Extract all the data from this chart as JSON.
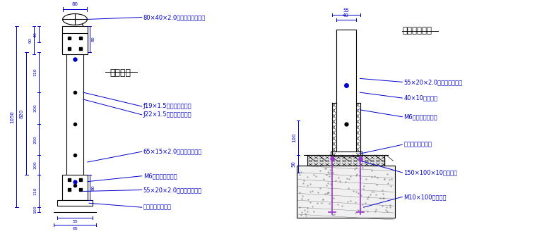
{
  "bg_color": "#ffffff",
  "black": "#000000",
  "blue": "#0000cd",
  "purple": "#9933cc",
  "title1": "侧立面图",
  "title2": "预埋钢板详图",
  "dim_top80": "80",
  "dim_1050": "1050",
  "dim_820": "820",
  "dim_90": "90",
  "dim_40top": "40",
  "dim_110a": "110",
  "dim_80a": "80",
  "dim_200a": "200",
  "dim_200b": "200",
  "dim_200c": "200",
  "dim_110b": "110",
  "dim_80b": "80",
  "dim_100": "100",
  "dim_55b": "55",
  "dim_65": "65",
  "dim_55r": "55",
  "dim_40r": "40",
  "dim_100r": "100",
  "dim_50r": "50",
  "lbl_ellipse": "80×40×2.0拉丝不锈钐椭圆管",
  "lbl_round": "ƒ19×1.5拉丝不锈钐圆管",
  "lbl_sleeve": "ƒ22×1.5拉丝不锈钐套管",
  "lbl_rect": "65×15×2.0拉丝不锈钐方管",
  "lbl_m6": "M6不锈钐沉头螺丝",
  "lbl_55rect": "55×20×2.0拉丝不锈钐方管",
  "lbl_cover": "拉丝不锈钐装饰盖",
  "lbl_r_55rect": "55×20×2.0拉丝不锈钐方管",
  "lbl_r_zinc": "40×10镀锌钐板",
  "lbl_r_m6": "M6不锈钐沉头螺丝",
  "lbl_r_cover": "拉丝不锈钐装饰盖",
  "lbl_r_embed": "150×100×10预埋钐板",
  "lbl_r_bolt": "M10×100膨胀螺丝"
}
